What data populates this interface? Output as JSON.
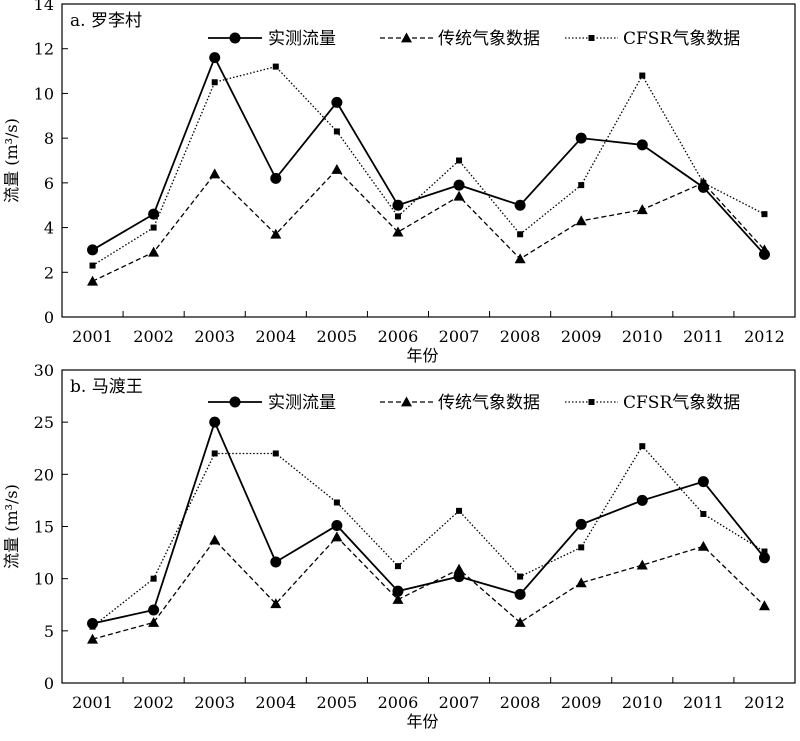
{
  "chart_data": [
    {
      "type": "line",
      "title": "a. 罗李村",
      "xlabel": "年份",
      "ylabel": "流量 (m³/s)",
      "categories": [
        "2001",
        "2002",
        "2003",
        "2004",
        "2005",
        "2006",
        "2007",
        "2008",
        "2009",
        "2010",
        "2011",
        "2012"
      ],
      "ylim": [
        0,
        14
      ],
      "yticks": [
        0,
        2,
        4,
        6,
        8,
        10,
        12,
        14
      ],
      "legend_position": "top-right",
      "grid": false,
      "series": [
        {
          "name": "实测流量",
          "style": "solid-circle",
          "values": [
            3.0,
            4.6,
            11.6,
            6.2,
            9.6,
            5.0,
            5.9,
            5.0,
            8.0,
            7.7,
            5.8,
            2.8
          ]
        },
        {
          "name": "传统气象数据",
          "style": "dashed-triangle",
          "values": [
            1.6,
            2.9,
            6.4,
            3.7,
            6.6,
            3.8,
            5.4,
            2.6,
            4.3,
            4.8,
            6.0,
            3.0
          ]
        },
        {
          "name": "CFSR气象数据",
          "style": "dotted-square",
          "values": [
            2.3,
            4.0,
            10.5,
            11.2,
            8.3,
            4.5,
            7.0,
            3.7,
            5.9,
            10.8,
            6.0,
            4.6
          ]
        }
      ]
    },
    {
      "type": "line",
      "title": "b. 马渡王",
      "xlabel": "年份",
      "ylabel": "流量 (m³/s)",
      "categories": [
        "2001",
        "2002",
        "2003",
        "2004",
        "2005",
        "2006",
        "2007",
        "2008",
        "2009",
        "2010",
        "2011",
        "2012"
      ],
      "ylim": [
        0,
        30
      ],
      "yticks": [
        0,
        5,
        10,
        15,
        20,
        25,
        30
      ],
      "legend_position": "top-right",
      "grid": false,
      "series": [
        {
          "name": "实测流量",
          "style": "solid-circle",
          "values": [
            5.7,
            7.0,
            25.0,
            11.6,
            15.1,
            8.8,
            10.2,
            8.5,
            15.2,
            17.5,
            19.3,
            12.0
          ]
        },
        {
          "name": "传统气象数据",
          "style": "dashed-triangle",
          "values": [
            4.2,
            5.8,
            13.7,
            7.6,
            14.0,
            8.0,
            10.9,
            5.8,
            9.6,
            11.3,
            13.1,
            7.4
          ]
        },
        {
          "name": "CFSR气象数据",
          "style": "dotted-square",
          "values": [
            5.4,
            10.0,
            22.0,
            22.0,
            17.3,
            11.2,
            16.5,
            10.2,
            13.0,
            22.7,
            16.2,
            12.6
          ]
        }
      ]
    }
  ]
}
